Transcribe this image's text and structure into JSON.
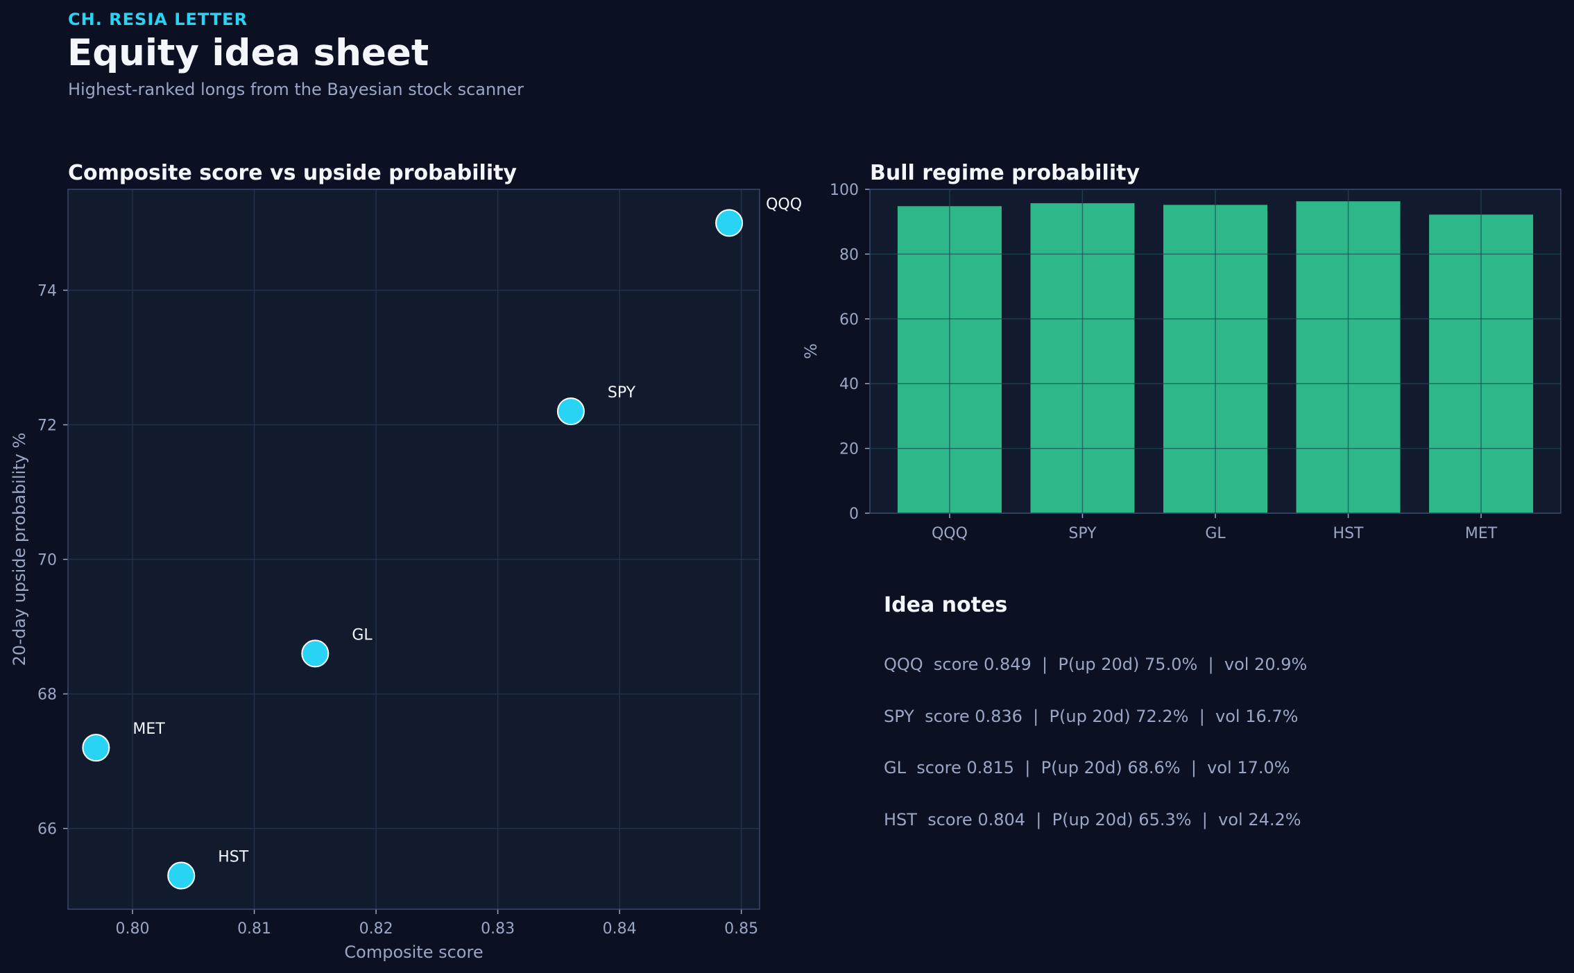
{
  "header": {
    "kicker": "CH. RESIA LETTER",
    "title": "Equity idea sheet",
    "subtitle": "Highest-ranked longs from the Bayesian stock scanner"
  },
  "colors": {
    "background": "#0b1122",
    "panel": "#121a2e",
    "accent_cyan": "#29d3f3",
    "bar_green": "#2eb88a",
    "muted_text": "#9aa6c5"
  },
  "chart_data": [
    {
      "type": "scatter",
      "title": "Composite score vs upside probability",
      "xlabel": "Composite score",
      "ylabel": "20-day upside probability %",
      "xlim": [
        0.7947,
        0.8515
      ],
      "ylim": [
        64.8,
        75.5
      ],
      "xticks": [
        0.8,
        0.81,
        0.82,
        0.83,
        0.84,
        0.85
      ],
      "xtick_labels": [
        "0.80",
        "0.81",
        "0.82",
        "0.83",
        "0.84",
        "0.85"
      ],
      "yticks": [
        66,
        68,
        70,
        72,
        74
      ],
      "ytick_labels": [
        "66",
        "68",
        "70",
        "72",
        "74"
      ],
      "grid": true,
      "points": [
        {
          "label": "QQQ",
          "x": 0.849,
          "y": 75.0
        },
        {
          "label": "SPY",
          "x": 0.836,
          "y": 72.2
        },
        {
          "label": "GL",
          "x": 0.815,
          "y": 68.6
        },
        {
          "label": "HST",
          "x": 0.804,
          "y": 65.3
        },
        {
          "label": "MET",
          "x": 0.797,
          "y": 67.2
        }
      ]
    },
    {
      "type": "bar",
      "title": "Bull regime probability",
      "xlabel": "",
      "ylabel": "%",
      "ylim": [
        0,
        100
      ],
      "yticks": [
        0,
        20,
        40,
        60,
        80,
        100
      ],
      "ytick_labels": [
        "0",
        "20",
        "40",
        "60",
        "80",
        "100"
      ],
      "grid": true,
      "categories": [
        "QQQ",
        "SPY",
        "GL",
        "HST",
        "MET"
      ],
      "values": [
        94.8,
        95.7,
        95.2,
        96.3,
        92.2
      ]
    }
  ],
  "notes": {
    "title": "Idea notes",
    "lines": [
      "QQQ  score 0.849  |  P(up 20d) 75.0%  |  vol 20.9%",
      "SPY  score 0.836  |  P(up 20d) 72.2%  |  vol 16.7%",
      "GL  score 0.815  |  P(up 20d) 68.6%  |  vol 17.0%",
      "HST  score 0.804  |  P(up 20d) 65.3%  |  vol 24.2%"
    ]
  }
}
